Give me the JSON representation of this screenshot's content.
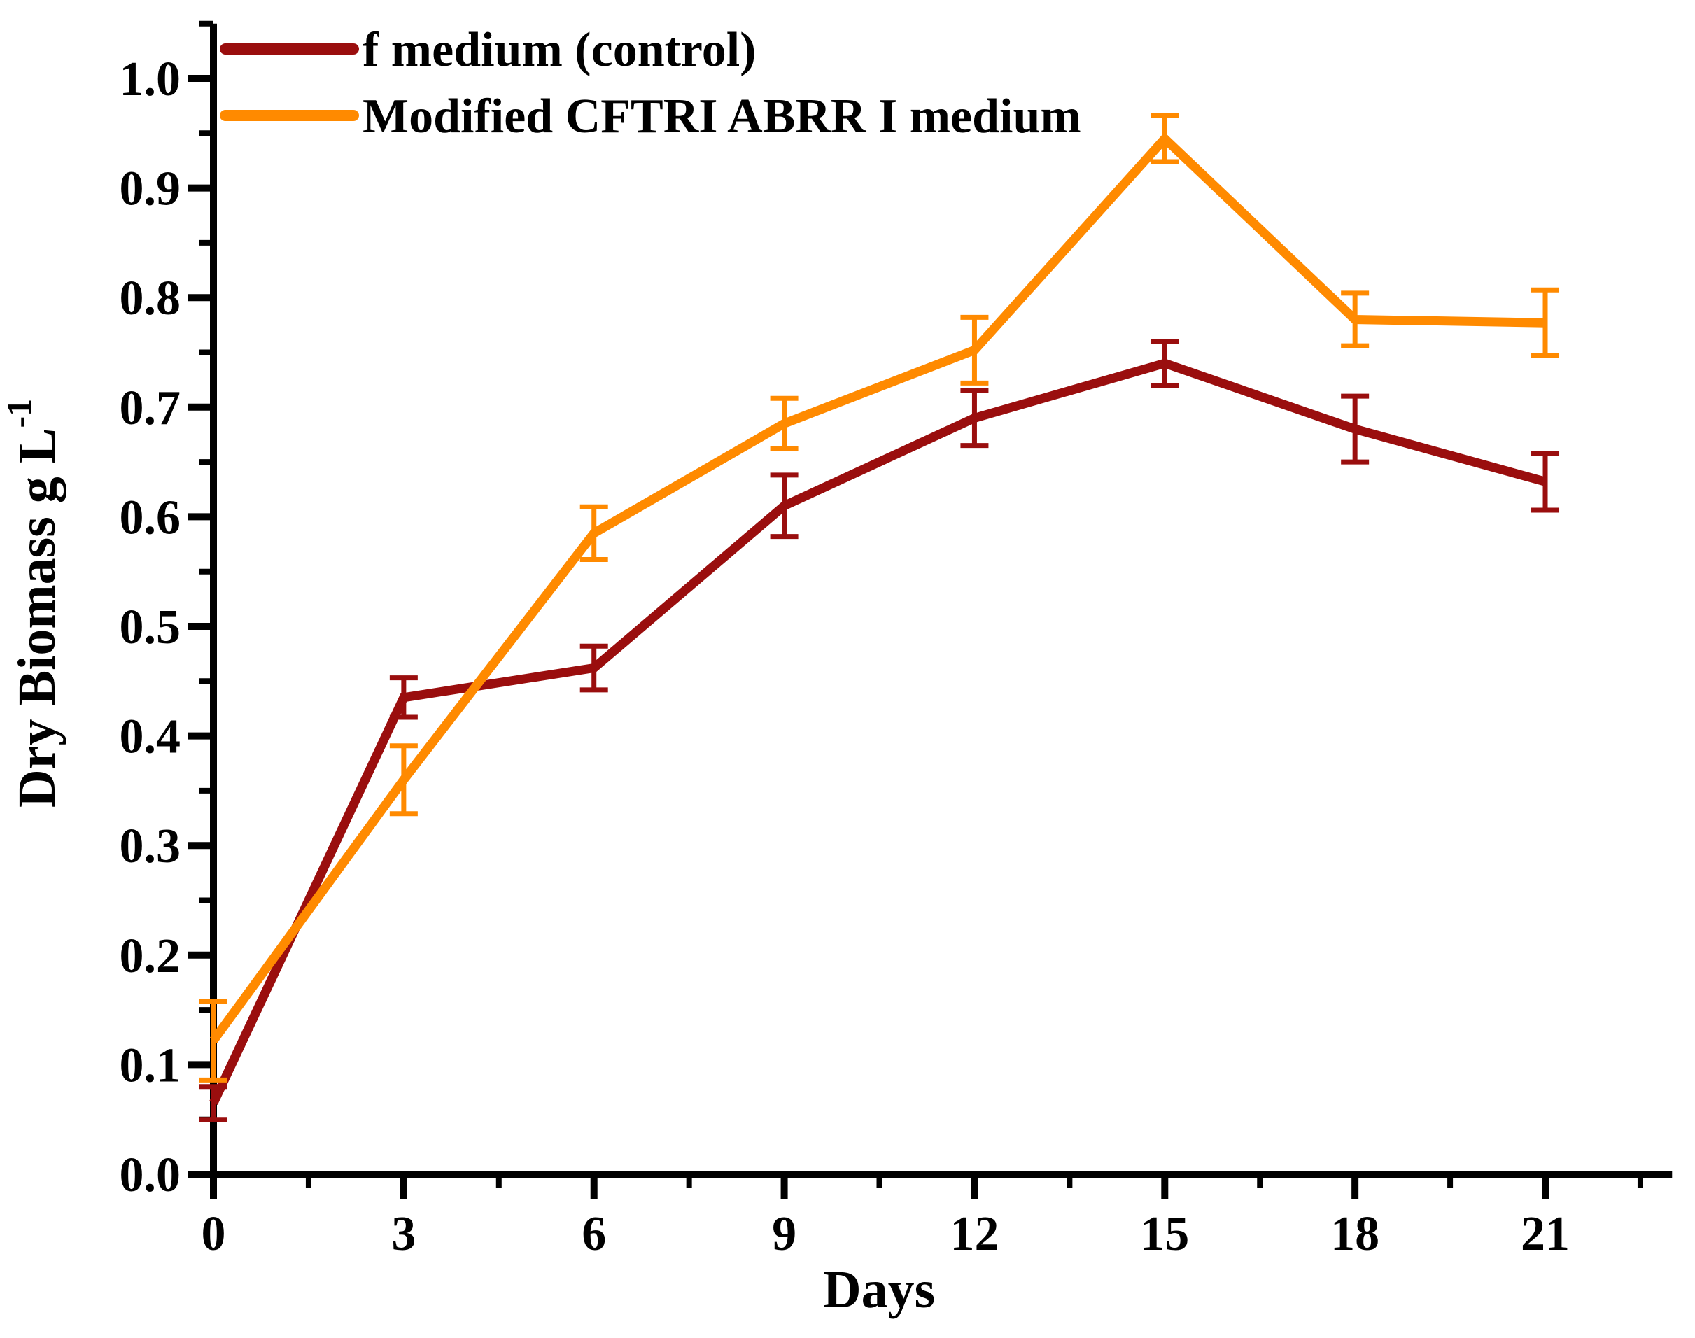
{
  "chart_data": {
    "type": "line",
    "title": "",
    "xlabel": "Days",
    "ylabel": "Dry Biomass g L",
    "ylabel_superscript": "-1",
    "grid": false,
    "legend_position": "top-left",
    "xlim": [
      -0.4,
      23.0
    ],
    "ylim": [
      0.0,
      1.05
    ],
    "x": [
      0,
      3,
      6,
      9,
      12,
      15,
      18,
      21
    ],
    "x_major_ticks": [
      0,
      3,
      6,
      9,
      12,
      15,
      18,
      21
    ],
    "x_tick_labels": [
      "0",
      "3",
      "6",
      "9",
      "12",
      "15",
      "18",
      "21"
    ],
    "x_minor_ticks": [
      1.5,
      4.5,
      7.5,
      10.5,
      13.5,
      16.5,
      19.5,
      22.5
    ],
    "y_major_ticks": [
      0.0,
      0.1,
      0.2,
      0.3,
      0.4,
      0.5,
      0.6,
      0.7,
      0.8,
      0.9,
      1.0
    ],
    "y_tick_labels": [
      "0.0",
      "0.1",
      "0.2",
      "0.3",
      "0.4",
      "0.5",
      "0.6",
      "0.7",
      "0.8",
      "0.9",
      "1.0"
    ],
    "y_minor_ticks": [
      0.05,
      0.15,
      0.25,
      0.35,
      0.45,
      0.55,
      0.65,
      0.75,
      0.85,
      0.95,
      1.05
    ],
    "axis_color": "#000000",
    "series": [
      {
        "id": "f-medium-control",
        "name": "f medium (control)",
        "color": "#9A0E0E",
        "values": [
          0.065,
          0.435,
          0.462,
          0.61,
          0.69,
          0.74,
          0.68,
          0.632
        ],
        "errors": [
          0.015,
          0.018,
          0.02,
          0.028,
          0.025,
          0.02,
          0.03,
          0.026
        ]
      },
      {
        "id": "modified-cftri-abrr-i-medium",
        "name": "Modified CFTRI ABRR I medium",
        "color": "#FF8A00",
        "values": [
          0.122,
          0.36,
          0.585,
          0.685,
          0.752,
          0.945,
          0.78,
          0.777
        ],
        "errors": [
          0.036,
          0.031,
          0.024,
          0.023,
          0.03,
          0.021,
          0.024,
          0.03
        ]
      }
    ]
  }
}
